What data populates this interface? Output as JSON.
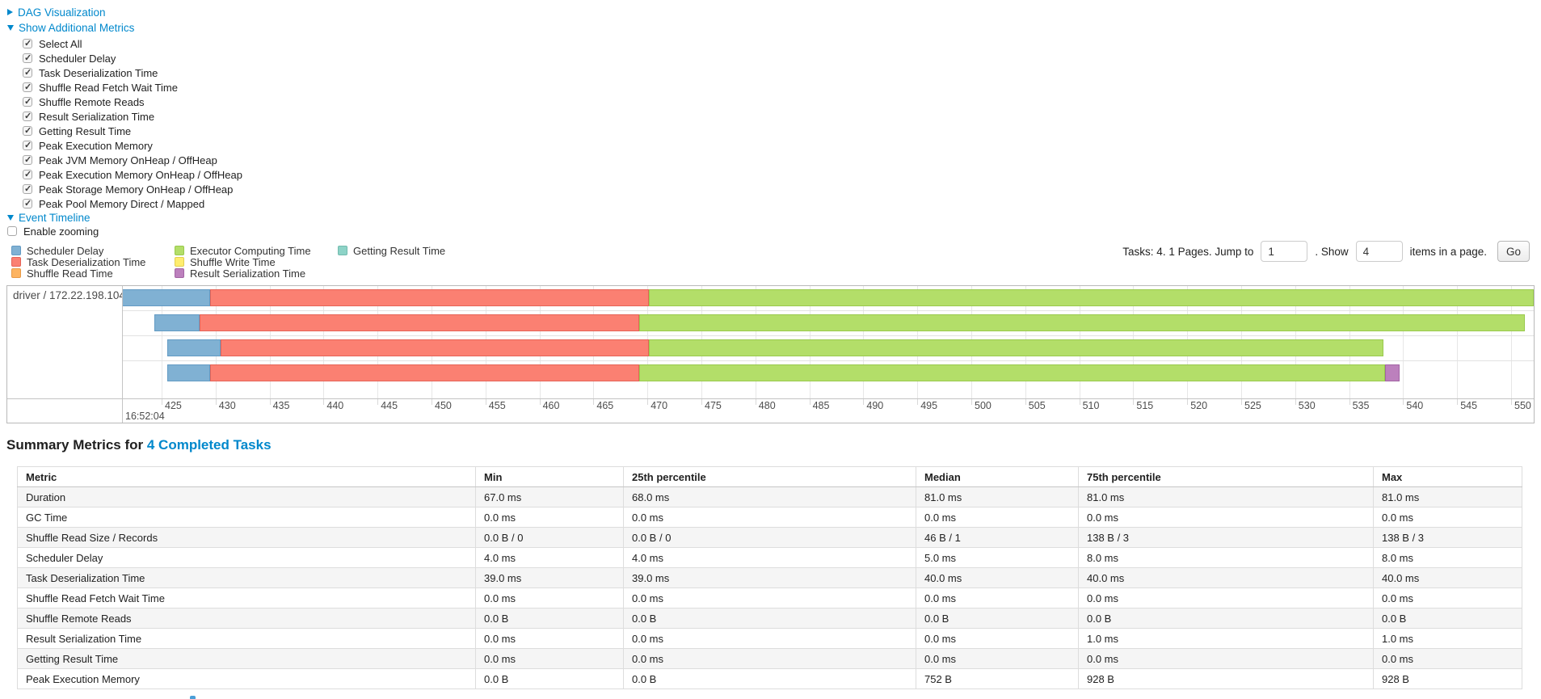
{
  "controls": {
    "dag_visualization": {
      "label": "DAG Visualization",
      "expanded": false
    },
    "show_additional_metrics": {
      "label": "Show Additional Metrics",
      "expanded": true
    },
    "metric_checkboxes": [
      {
        "label": "Select All",
        "checked": true
      },
      {
        "label": "Scheduler Delay",
        "checked": true
      },
      {
        "label": "Task Deserialization Time",
        "checked": true
      },
      {
        "label": "Shuffle Read Fetch Wait Time",
        "checked": true
      },
      {
        "label": "Shuffle Remote Reads",
        "checked": true
      },
      {
        "label": "Result Serialization Time",
        "checked": true
      },
      {
        "label": "Getting Result Time",
        "checked": true
      },
      {
        "label": "Peak Execution Memory",
        "checked": true
      },
      {
        "label": "Peak JVM Memory OnHeap / OffHeap",
        "checked": true
      },
      {
        "label": "Peak Execution Memory OnHeap / OffHeap",
        "checked": true
      },
      {
        "label": "Peak Storage Memory OnHeap / OffHeap",
        "checked": true
      },
      {
        "label": "Peak Pool Memory Direct / Mapped",
        "checked": true
      }
    ],
    "event_timeline": {
      "label": "Event Timeline",
      "expanded": true
    },
    "enable_zooming": {
      "label": "Enable zooming",
      "checked": false
    }
  },
  "phase_colors": {
    "scheduler_delay": {
      "fill": "#80B1D3",
      "border": "#639BC4"
    },
    "task_deserialization": {
      "fill": "#FB8072",
      "border": "#E56357"
    },
    "shuffle_read": {
      "fill": "#FDB462",
      "border": "#E89A47"
    },
    "executor_computing": {
      "fill": "#B3DE69",
      "border": "#99C94D"
    },
    "shuffle_write": {
      "fill": "#FFED6F",
      "border": "#E2CF52"
    },
    "result_serialization": {
      "fill": "#BC80BD",
      "border": "#A264A4"
    },
    "getting_result": {
      "fill": "#8DD3C7",
      "border": "#72BBAE"
    }
  },
  "legend": {
    "columns": [
      [
        {
          "phase": "scheduler_delay",
          "label": "Scheduler Delay"
        },
        {
          "phase": "task_deserialization",
          "label": "Task Deserialization Time"
        },
        {
          "phase": "shuffle_read",
          "label": "Shuffle Read Time"
        }
      ],
      [
        {
          "phase": "executor_computing",
          "label": "Executor Computing Time"
        },
        {
          "phase": "shuffle_write",
          "label": "Shuffle Write Time"
        },
        {
          "phase": "result_serialization",
          "label": "Result Serialization Time"
        }
      ],
      [
        {
          "phase": "getting_result",
          "label": "Getting Result Time"
        }
      ]
    ]
  },
  "pagination": {
    "prefix": "Tasks: 4. 1 Pages. Jump to",
    "jump_value": "1",
    "mid": ". Show",
    "show_value": "4",
    "suffix": "items in a page.",
    "go_label": "Go"
  },
  "chart_data": {
    "type": "timeline",
    "group_label": "driver / 172.22.198.104",
    "axis": {
      "base_time_label": "16:52:04",
      "tick_start_ms": 425,
      "tick_end_ms": 550,
      "tick_step_ms": 5,
      "unit": "ms within second 16:52:04"
    },
    "tasks": [
      {
        "name": "task-row-1",
        "segments": [
          [
            "scheduler_delay",
            421.3,
            429.5
          ],
          [
            "task_deserialization",
            429.5,
            470.1
          ],
          [
            "executor_computing",
            470.1,
            552.1
          ]
        ]
      },
      {
        "name": "task-row-2",
        "segments": [
          [
            "scheduler_delay",
            424.3,
            428.5
          ],
          [
            "task_deserialization",
            428.5,
            469.2
          ],
          [
            "executor_computing",
            469.2,
            551.3
          ]
        ]
      },
      {
        "name": "task-row-3",
        "segments": [
          [
            "scheduler_delay",
            425.5,
            430.5
          ],
          [
            "task_deserialization",
            430.5,
            470.1
          ],
          [
            "executor_computing",
            470.1,
            538.2
          ]
        ]
      },
      {
        "name": "task-row-4",
        "segments": [
          [
            "scheduler_delay",
            425.5,
            429.5
          ],
          [
            "task_deserialization",
            429.5,
            469.2
          ],
          [
            "executor_computing",
            469.2,
            538.3
          ],
          [
            "result_serialization",
            538.3,
            539.7
          ]
        ]
      }
    ]
  },
  "summary": {
    "title_prefix": "Summary Metrics for",
    "title_link": "4 Completed Tasks",
    "headers": [
      "Metric",
      "Min",
      "25th percentile",
      "Median",
      "75th percentile",
      "Max"
    ],
    "rows": [
      [
        "Duration",
        "67.0 ms",
        "68.0 ms",
        "81.0 ms",
        "81.0 ms",
        "81.0 ms"
      ],
      [
        "GC Time",
        "0.0 ms",
        "0.0 ms",
        "0.0 ms",
        "0.0 ms",
        "0.0 ms"
      ],
      [
        "Shuffle Read Size / Records",
        "0.0 B / 0",
        "0.0 B / 0",
        "46 B / 1",
        "138 B / 3",
        "138 B / 3"
      ],
      [
        "Scheduler Delay",
        "4.0 ms",
        "4.0 ms",
        "5.0 ms",
        "8.0 ms",
        "8.0 ms"
      ],
      [
        "Task Deserialization Time",
        "39.0 ms",
        "39.0 ms",
        "40.0 ms",
        "40.0 ms",
        "40.0 ms"
      ],
      [
        "Shuffle Read Fetch Wait Time",
        "0.0 ms",
        "0.0 ms",
        "0.0 ms",
        "0.0 ms",
        "0.0 ms"
      ],
      [
        "Shuffle Remote Reads",
        "0.0 B",
        "0.0 B",
        "0.0 B",
        "0.0 B",
        "0.0 B"
      ],
      [
        "Result Serialization Time",
        "0.0 ms",
        "0.0 ms",
        "0.0 ms",
        "1.0 ms",
        "1.0 ms"
      ],
      [
        "Getting Result Time",
        "0.0 ms",
        "0.0 ms",
        "0.0 ms",
        "0.0 ms",
        "0.0 ms"
      ],
      [
        "Peak Execution Memory",
        "0.0 B",
        "0.0 B",
        "752 B",
        "928 B",
        "928 B"
      ]
    ]
  }
}
